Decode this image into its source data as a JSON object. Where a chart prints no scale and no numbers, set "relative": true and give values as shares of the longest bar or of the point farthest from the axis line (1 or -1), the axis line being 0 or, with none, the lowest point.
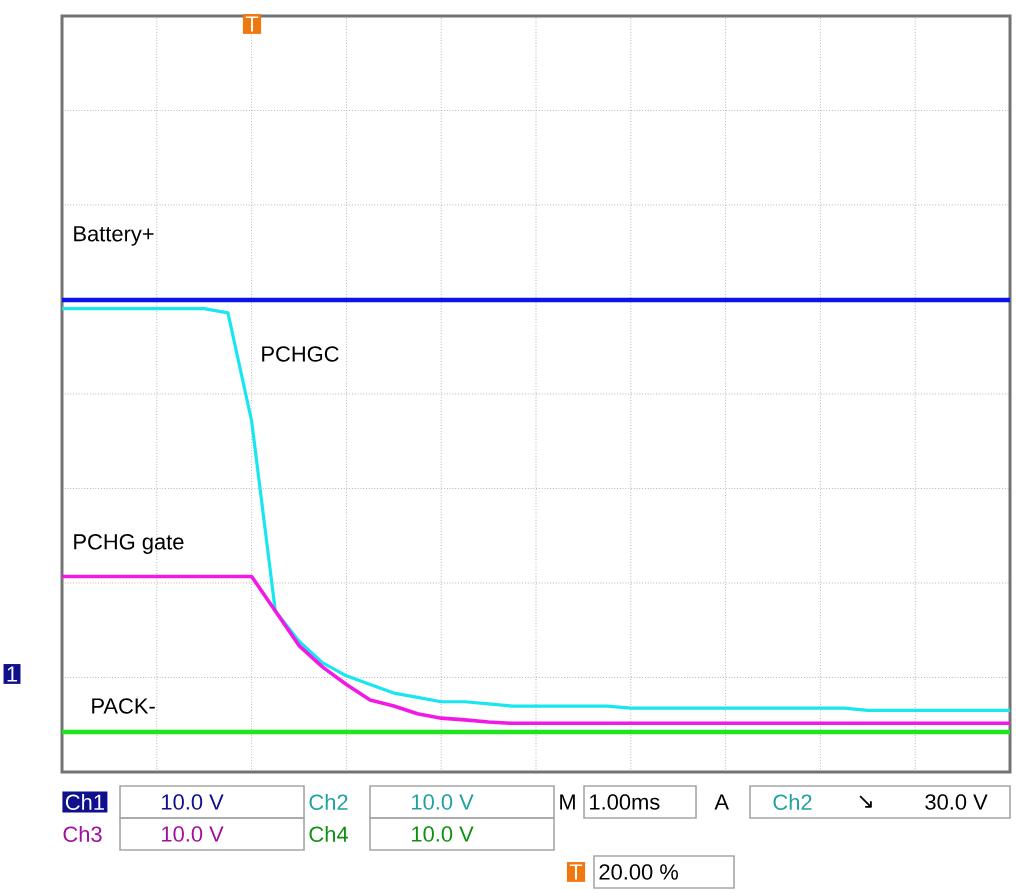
{
  "chart_data": {
    "type": "line",
    "relative": true,
    "grid": true,
    "marker": "none",
    "line_style": "solid",
    "categories": [
      null,
      null,
      null,
      null,
      null,
      null,
      null,
      null,
      null,
      null,
      null,
      null,
      null,
      null,
      null,
      null,
      null,
      null,
      null,
      null,
      null,
      null,
      null,
      null,
      null,
      null,
      null,
      null,
      null,
      null,
      null,
      null,
      null,
      null,
      null,
      null,
      null,
      null,
      null,
      null,
      null
    ],
    "series": [
      {
        "name": "Battery+",
        "color": "#0a14e6",
        "values": [
          1,
          1,
          1,
          1,
          1,
          1,
          1,
          1,
          1,
          1,
          1,
          1,
          1,
          1,
          1,
          1,
          1,
          1,
          1,
          1,
          1,
          1,
          1,
          1,
          1,
          1,
          1,
          1,
          1,
          1,
          1,
          1,
          1,
          1,
          1,
          1,
          1,
          1,
          1,
          1,
          1
        ]
      },
      {
        "name": "PCHGC",
        "color": "#19e6f0",
        "values": [
          0.98,
          0.98,
          0.98,
          0.98,
          0.98,
          0.98,
          0.98,
          0.97,
          0.72,
          0.28,
          0.21,
          0.16,
          0.13,
          0.11,
          0.09,
          0.08,
          0.07,
          0.07,
          0.065,
          0.06,
          0.06,
          0.06,
          0.06,
          0.06,
          0.055,
          0.055,
          0.055,
          0.055,
          0.055,
          0.055,
          0.055,
          0.055,
          0.055,
          0.055,
          0.05,
          0.05,
          0.05,
          0.05,
          0.05,
          0.05,
          0.05
        ]
      },
      {
        "name": "PCHG gate",
        "color": "#f019e6",
        "values": [
          0.36,
          0.36,
          0.36,
          0.36,
          0.36,
          0.36,
          0.36,
          0.36,
          0.36,
          0.28,
          0.2,
          0.15,
          0.11,
          0.074,
          0.06,
          0.042,
          0.032,
          0.028,
          0.023,
          0.02,
          0.02,
          0.02,
          0.02,
          0.02,
          0.02,
          0.02,
          0.02,
          0.02,
          0.02,
          0.02,
          0.02,
          0.02,
          0.02,
          0.02,
          0.02,
          0.02,
          0.02,
          0.02,
          0.02,
          0.02,
          0.02
        ]
      },
      {
        "name": "PACK-",
        "color": "#1ee61e",
        "values": [
          0,
          0,
          0,
          0,
          0,
          0,
          0,
          0,
          0,
          0,
          0,
          0,
          0,
          0,
          0,
          0,
          0,
          0,
          0,
          0,
          0,
          0,
          0,
          0,
          0,
          0,
          0,
          0,
          0,
          0,
          0,
          0,
          0,
          0,
          0,
          0,
          0,
          0,
          0,
          0,
          0
        ]
      }
    ],
    "annotations": [
      "T",
      "1",
      "Ch1",
      "10.0 V",
      "Ch2",
      "10.0 V",
      "M",
      "1.00ms",
      "A",
      "Ch2",
      "↘",
      "30.0 V",
      "Ch3",
      "10.0 V",
      "Ch4",
      "10.0 V",
      "20.00 %",
      "T"
    ]
  }
}
